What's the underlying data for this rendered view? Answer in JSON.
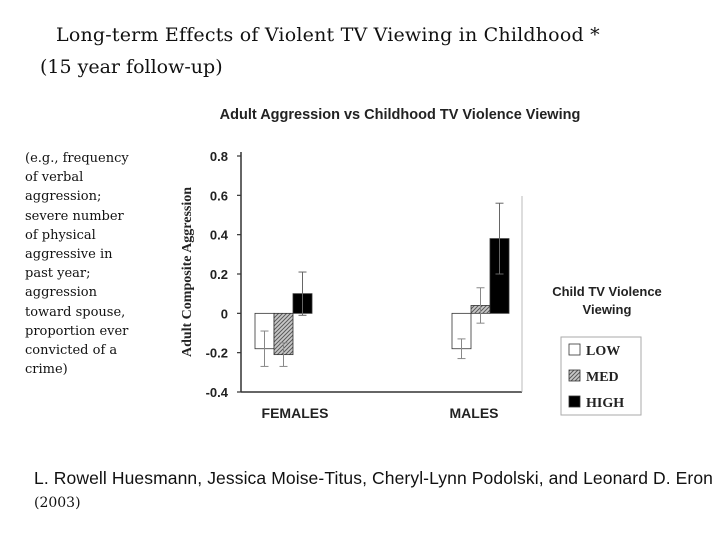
{
  "slide": {
    "title_line1": "Long-term Effects of Violent TV Viewing in Childhood *",
    "title_line2": "(15 year follow-up)",
    "note_lines": [
      "(e.g., frequency",
      "of verbal",
      "aggression;",
      "severe number",
      "of physical",
      "aggressive in",
      "past year;",
      "aggression",
      "toward spouse,",
      "proportion ever",
      "convicted of a",
      "crime)"
    ],
    "authors": "L. Rowell Huesmann, Jessica Moise-Titus, Cheryl-Lynn Podolski, and Leonard D. Eron",
    "year": "(2003)"
  },
  "chart_data": {
    "type": "bar",
    "title": "Adult Aggression vs Childhood TV Violence Viewing",
    "xlabel": "",
    "ylabel": "Adult Composite Aggression",
    "categories": [
      "FEMALES",
      "MALES"
    ],
    "ylim": [
      -0.4,
      0.8
    ],
    "yticks": [
      "0.8",
      "0.6",
      "0.4",
      "0.2",
      "0",
      "-0.2",
      "-0.4"
    ],
    "ytick_values": [
      0.8,
      0.6,
      0.4,
      0.2,
      0,
      -0.2,
      -0.4
    ],
    "legend_title_line1": "Child TV Violence",
    "legend_title_line2": "Viewing",
    "series": [
      {
        "name": "LOW",
        "values": [
          -0.18,
          -0.18
        ],
        "error": [
          0.09,
          0.05
        ],
        "color": "#ffffff"
      },
      {
        "name": "MED",
        "values": [
          -0.21,
          0.04
        ],
        "error": [
          0.06,
          0.09
        ],
        "color": "#9a9a9a"
      },
      {
        "name": "HIGH",
        "values": [
          0.1,
          0.38
        ],
        "error": [
          0.11,
          0.18
        ],
        "color": "#000000"
      }
    ]
  }
}
